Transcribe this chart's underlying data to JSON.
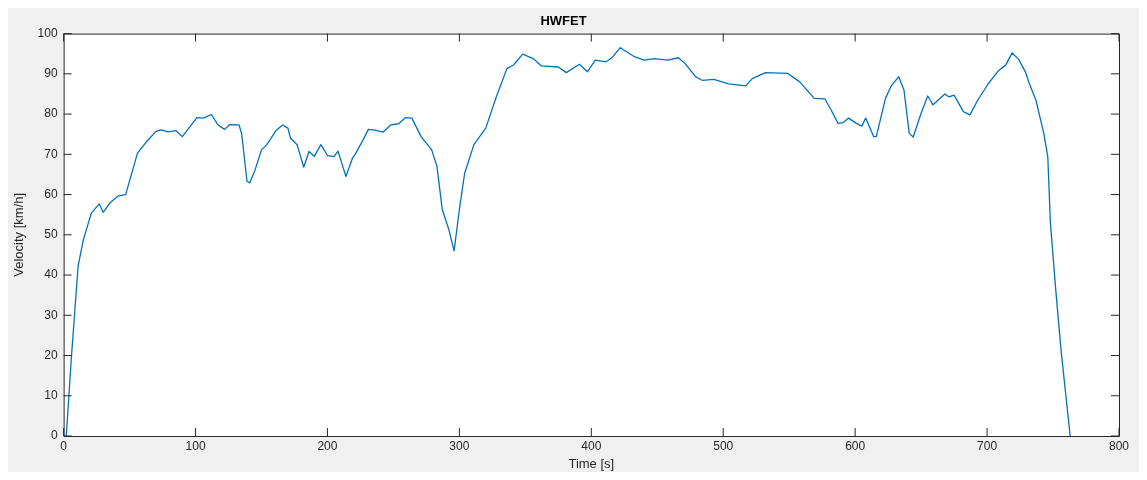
{
  "chart_data": {
    "type": "line",
    "title": "HWFET",
    "xlabel": "Time [s]",
    "ylabel": "Velocity [km/h]",
    "series": [
      {
        "color": "#0072bd",
        "x": [
          2,
          6,
          11,
          15,
          21,
          27,
          30,
          35,
          41,
          47,
          56,
          62,
          70,
          74,
          79,
          85,
          90,
          101,
          106,
          112,
          117,
          122,
          126,
          133,
          135,
          139,
          141,
          145,
          150,
          154,
          161,
          166,
          170,
          172,
          177,
          182,
          186,
          190,
          195,
          200,
          205,
          208,
          214,
          219,
          221,
          227,
          231,
          236,
          242,
          248,
          254,
          259,
          264,
          267,
          271,
          279,
          283,
          287,
          292,
          296,
          300,
          304,
          311,
          320,
          328,
          336,
          341,
          348,
          356,
          362,
          375,
          381,
          391,
          397,
          403,
          411,
          415,
          422,
          433,
          440,
          448,
          458,
          466,
          471,
          479,
          484,
          493,
          504,
          517,
          522,
          532,
          549,
          558,
          569,
          577,
          582,
          587,
          591,
          595,
          601,
          605,
          608,
          614,
          616,
          623,
          627,
          633,
          637,
          641,
          644,
          650,
          655,
          659,
          668,
          671,
          675,
          682,
          687,
          693,
          701,
          709,
          714,
          719,
          724,
          729,
          732,
          737,
          743,
          746,
          748,
          752,
          756,
          760,
          763
        ],
        "values": [
          0,
          20,
          42.3,
          48.8,
          55.4,
          57.7,
          55.6,
          57.9,
          59.6,
          60,
          70.3,
          72.8,
          75.7,
          76.1,
          75.6,
          75.9,
          74.4,
          79.1,
          79,
          79.9,
          77.3,
          76.2,
          77.4,
          77.3,
          75,
          63.3,
          62.9,
          66,
          71.1,
          72.4,
          75.9,
          77.3,
          76.5,
          74,
          72.4,
          66.8,
          70.7,
          69.5,
          72.4,
          69.7,
          69.4,
          70.8,
          64.5,
          69.1,
          70,
          73.6,
          76.2,
          76,
          75.5,
          77.3,
          77.6,
          79.1,
          79,
          77,
          74.4,
          71.1,
          67,
          56.3,
          51.3,
          46,
          56.3,
          65.3,
          72.4,
          76.5,
          84.3,
          91.3,
          92.2,
          94.9,
          93.8,
          92,
          91.7,
          90.3,
          92.4,
          90.5,
          93.4,
          93,
          93.8,
          96.5,
          94.2,
          93.4,
          93.8,
          93.4,
          94,
          92.6,
          89.3,
          88.4,
          88.6,
          87.5,
          87,
          88.8,
          90.3,
          90.1,
          88,
          83.9,
          83.8,
          80.9,
          77.7,
          77.9,
          79,
          77.7,
          77,
          79,
          74.4,
          74.4,
          83.9,
          86.8,
          89.3,
          86,
          75.2,
          74.3,
          80.2,
          84.5,
          82.3,
          85,
          84.3,
          84.7,
          80.6,
          79.8,
          83.5,
          87.6,
          90.9,
          92.1,
          95.2,
          93.6,
          90.5,
          87.6,
          83.5,
          75.2,
          69.5,
          53,
          36.5,
          21.6,
          9.2,
          0
        ]
      }
    ],
    "xlim": [
      0,
      800
    ],
    "xticks": [
      0,
      100,
      200,
      300,
      400,
      500,
      600,
      700,
      800
    ],
    "ylim": [
      0,
      100
    ],
    "yticks": [
      0,
      10,
      20,
      30,
      40,
      50,
      60,
      70,
      80,
      90,
      100
    ],
    "grid": false,
    "legend": false,
    "marker": "none",
    "line_style": "solid"
  }
}
